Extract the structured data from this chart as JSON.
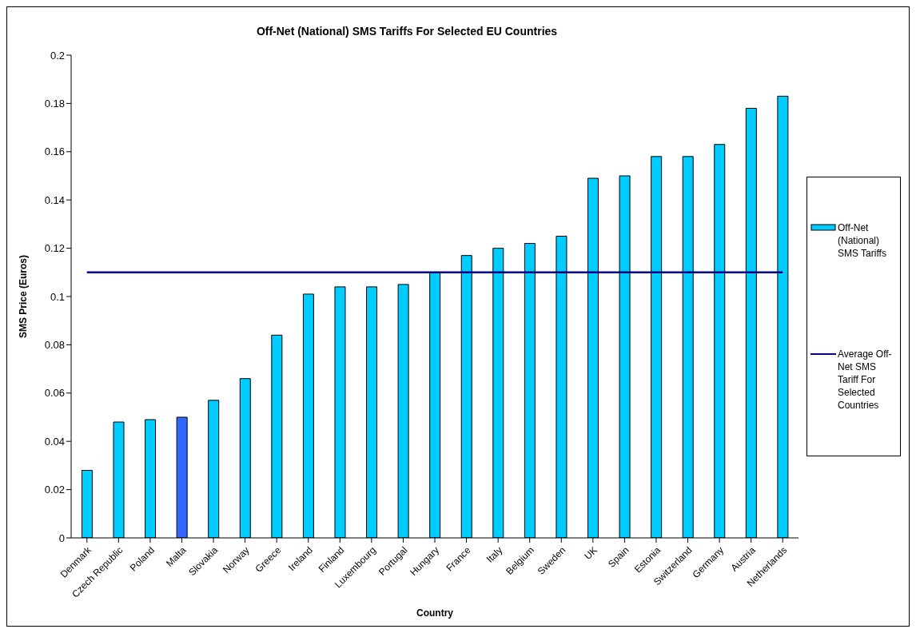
{
  "chart_data": {
    "type": "bar",
    "title": "Off-Net (National) SMS Tariffs For Selected EU Countries",
    "xlabel": "Country",
    "ylabel": "SMS Price (Euros)",
    "categories": [
      "Denmark",
      "Czech Republic",
      "Poland",
      "Malta",
      "Slovakia",
      "Norway",
      "Greece",
      "Ireland",
      "Finland",
      "Luxembourg",
      "Portugal",
      "Hungary",
      "France",
      "Italy",
      "Belgium",
      "Sweden",
      "UK",
      "Spain",
      "Estonia",
      "Switzerland",
      "Germany",
      "Austria",
      "Netherlands"
    ],
    "series": [
      {
        "name": "Off-Net (National) SMS Tariffs",
        "color": "#00ccff",
        "colors": [
          "#00ccff",
          "#00ccff",
          "#00ccff",
          "#3366ff",
          "#00ccff",
          "#00ccff",
          "#00ccff",
          "#00ccff",
          "#00ccff",
          "#00ccff",
          "#00ccff",
          "#00ccff",
          "#00ccff",
          "#00ccff",
          "#00ccff",
          "#00ccff",
          "#00ccff",
          "#00ccff",
          "#00ccff",
          "#00ccff",
          "#00ccff",
          "#00ccff",
          "#00ccff"
        ],
        "values": [
          0.028,
          0.048,
          0.049,
          0.05,
          0.057,
          0.066,
          0.084,
          0.101,
          0.104,
          0.104,
          0.105,
          0.11,
          0.117,
          0.12,
          0.122,
          0.125,
          0.149,
          0.15,
          0.158,
          0.158,
          0.163,
          0.178,
          0.183
        ]
      },
      {
        "name": "Average Off-Net SMS Tariff For Selected Countries",
        "type": "line",
        "color": "#000080",
        "values": [
          0.11,
          0.11,
          0.11,
          0.11,
          0.11,
          0.11,
          0.11,
          0.11,
          0.11,
          0.11,
          0.11,
          0.11,
          0.11,
          0.11,
          0.11,
          0.11,
          0.11,
          0.11,
          0.11,
          0.11,
          0.11,
          0.11,
          0.11
        ]
      }
    ],
    "ylim": [
      0,
      0.2
    ],
    "yticks": [
      0,
      0.02,
      0.04,
      0.06,
      0.08,
      0.1,
      0.12,
      0.14,
      0.16,
      0.18,
      0.2
    ],
    "grid": false,
    "legend": "right"
  }
}
